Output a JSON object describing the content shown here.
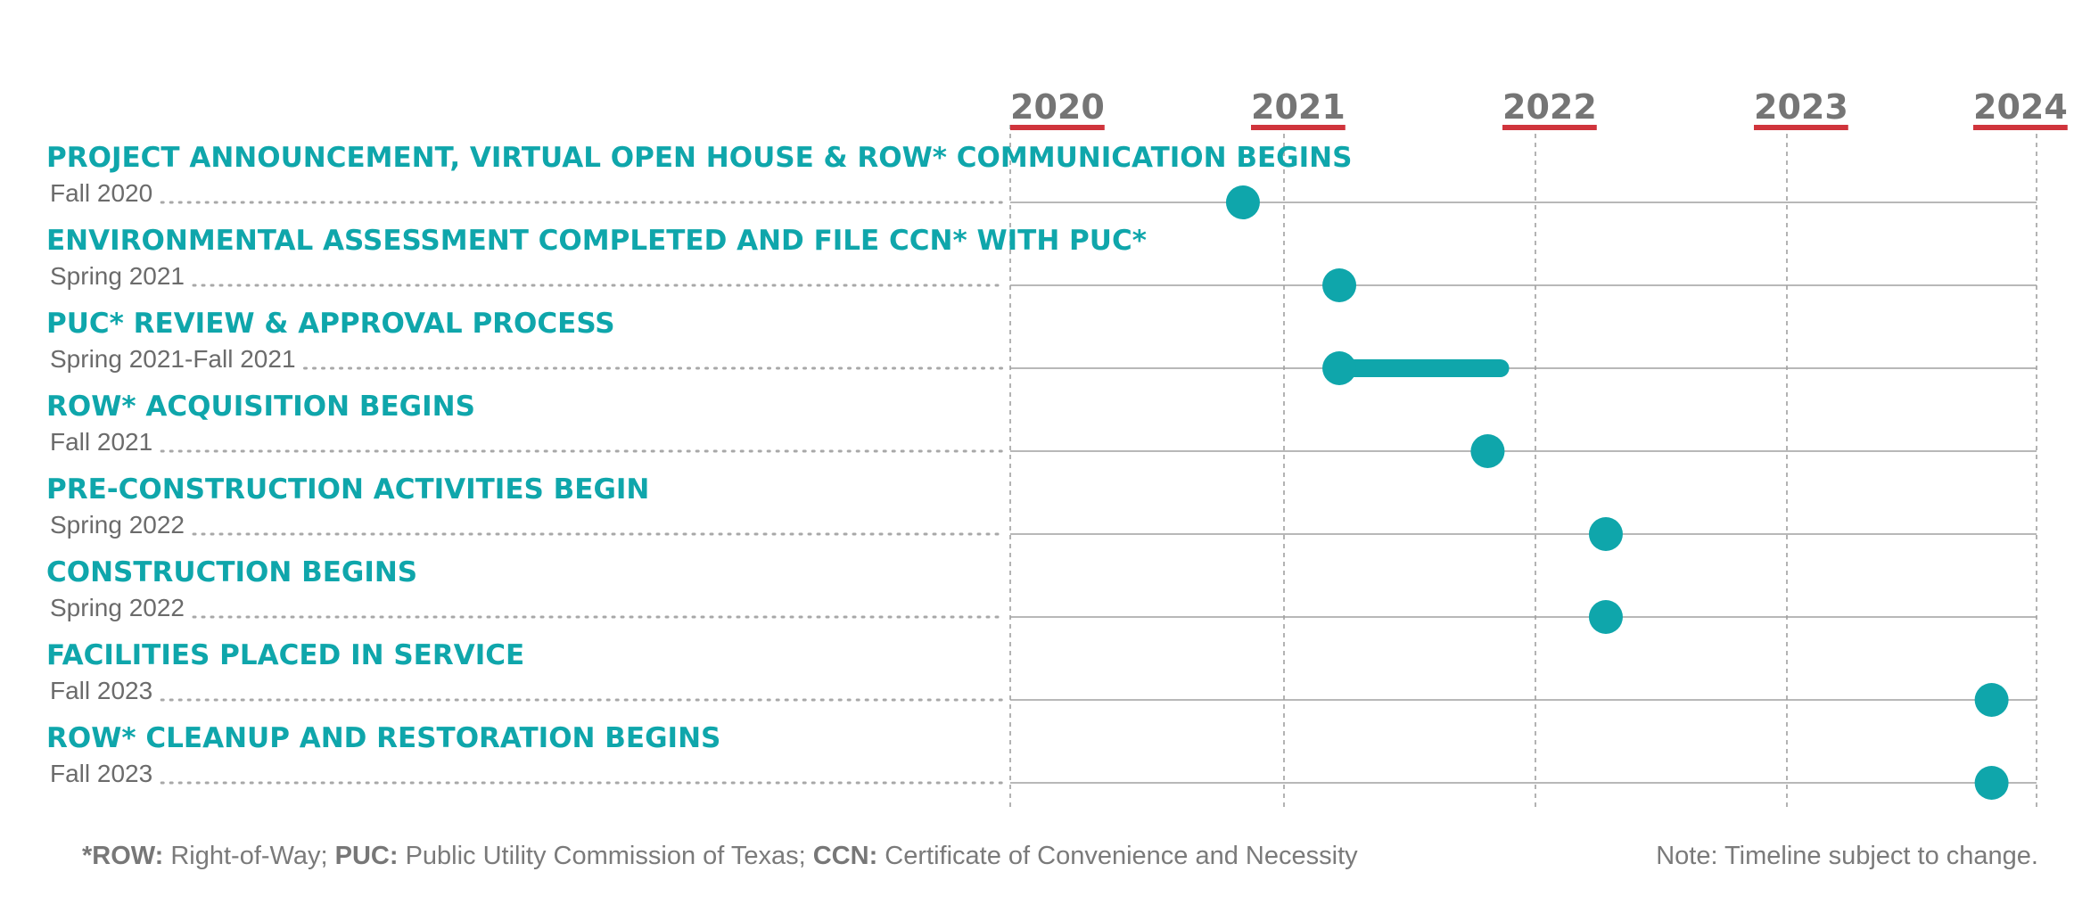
{
  "chart_data": {
    "type": "timeline",
    "x_axis": {
      "ticks": [
        "2020",
        "2021",
        "2022",
        "2023",
        "2024"
      ],
      "range": [
        "2020",
        "2024"
      ]
    },
    "grid": true,
    "colors": {
      "milestone": "#0fa6ab",
      "year_underline": "#d0343c",
      "year_label": "#757575"
    },
    "milestones": [
      {
        "title": "PROJECT ANNOUNCEMENT, VIRTUAL OPEN HOUSE & ROW* COMMUNICATION BEGINS",
        "date": "Fall 2020",
        "start": 2020.85
      },
      {
        "title": "ENVIRONMENTAL ASSESSMENT COMPLETED AND FILE CCN* WITH PUC*",
        "date": "Spring 2021",
        "start": 2021.22
      },
      {
        "title": "PUC* REVIEW & APPROVAL PROCESS",
        "date": "Spring 2021-Fall 2021",
        "start": 2021.22,
        "end": 2021.86
      },
      {
        "title": "ROW* ACQUISITION BEGINS",
        "date": "Fall 2021",
        "start": 2021.81
      },
      {
        "title": "PRE-CONSTRUCTION ACTIVITIES BEGIN",
        "date": "Spring 2022",
        "start": 2022.28
      },
      {
        "title": "CONSTRUCTION BEGINS",
        "date": "Spring 2022",
        "start": 2022.28
      },
      {
        "title": "FACILITIES PLACED IN SERVICE",
        "date": "Fall 2023",
        "start": 2023.82
      },
      {
        "title": "ROW* CLEANUP AND RESTORATION BEGINS",
        "date": "Fall 2023",
        "start": 2023.82
      }
    ]
  },
  "footer": {
    "row_abbr": "*ROW:",
    "row_text": "Right-of-Way;",
    "puc_abbr": "PUC:",
    "puc_text": "Public Utility Commission of Texas;",
    "ccn_abbr": "CCN:",
    "ccn_text": "Certificate of Convenience and Necessity",
    "note": "Note: Timeline subject to change."
  }
}
